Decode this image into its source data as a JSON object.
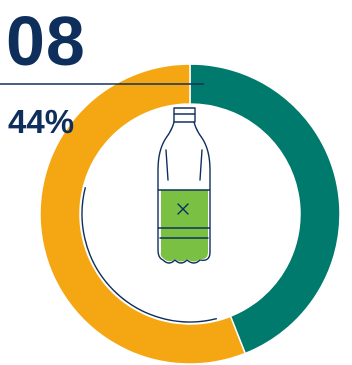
{
  "infographic": {
    "number": "08",
    "percent_text": "44%"
  },
  "icon": {
    "name": "plastic-bottle-icon"
  },
  "chart_data": {
    "type": "pie",
    "variant": "donut",
    "values": [
      44,
      56
    ],
    "value_labels": [
      "44%"
    ],
    "colors": [
      "#007a6c",
      "#f5a713"
    ],
    "accent_colors": {
      "text": "#0e2f5c",
      "bottle_fill": "#7ac143",
      "bottle_outline": "#0e2f5c"
    },
    "start": "top",
    "direction": "clockwise",
    "title": "",
    "legend": "none"
  }
}
